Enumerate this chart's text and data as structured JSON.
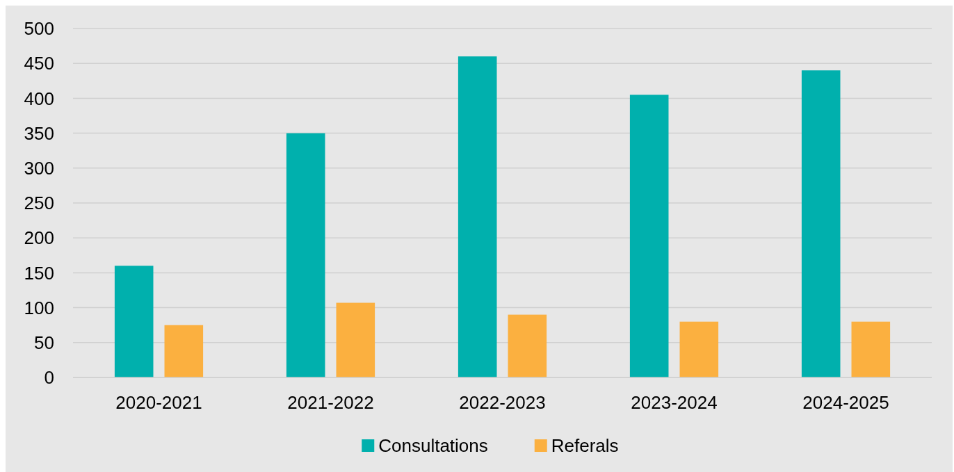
{
  "chart_data": {
    "type": "bar",
    "categories": [
      "2020-2021",
      "2021-2022",
      "2022-2023",
      "2023-2024",
      "2024-2025"
    ],
    "series": [
      {
        "name": "Consultations",
        "color": "#00b0ad",
        "values": [
          160,
          350,
          460,
          405,
          440
        ]
      },
      {
        "name": "Referals",
        "color": "#fbb040",
        "values": [
          75,
          107,
          90,
          80,
          80
        ]
      }
    ],
    "ylim": [
      0,
      500
    ],
    "yticks": [
      0,
      50,
      100,
      150,
      200,
      250,
      300,
      350,
      400,
      450,
      500
    ],
    "grid": "y",
    "legend": "bottom"
  }
}
